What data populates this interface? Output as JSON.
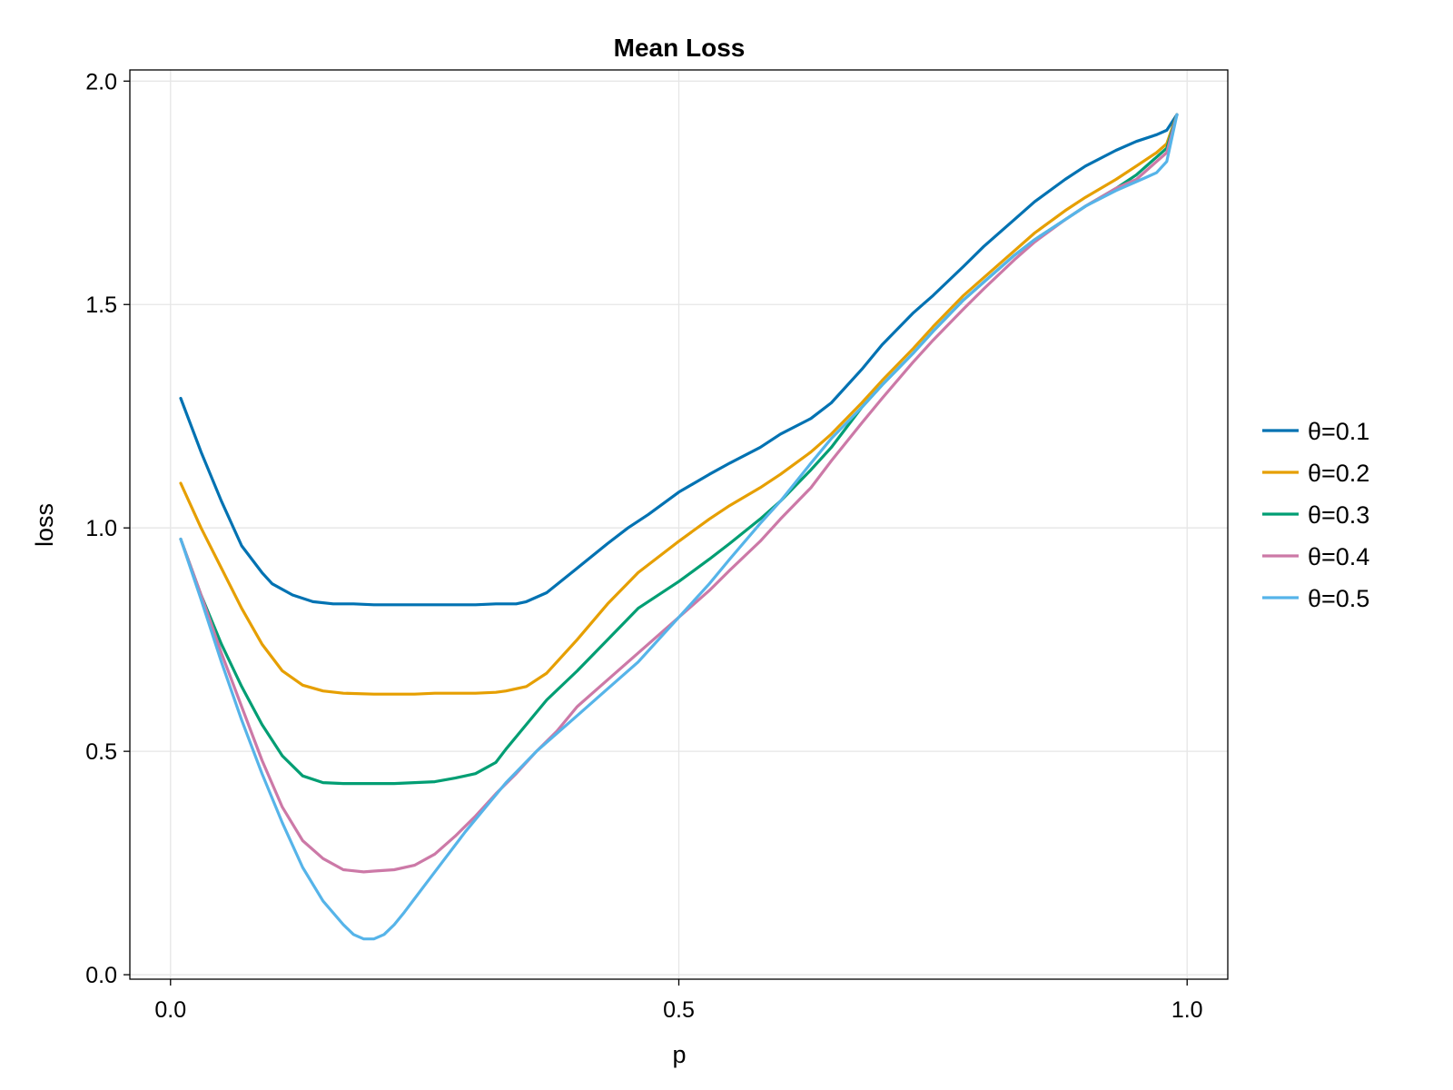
{
  "chart_data": {
    "type": "line",
    "title": "Mean Loss",
    "xlabel": "p",
    "ylabel": "loss",
    "xlim": [
      -0.04,
      1.04
    ],
    "ylim": [
      -0.01,
      2.025
    ],
    "xticks": [
      0.0,
      0.5,
      1.0
    ],
    "xtick_labels": [
      "0.0",
      "0.5",
      "1.0"
    ],
    "yticks": [
      0.0,
      0.5,
      1.0,
      1.5,
      2.0
    ],
    "ytick_labels": [
      "0.0",
      "0.5",
      "1.0",
      "1.5",
      "2.0"
    ],
    "grid": true,
    "legend_position": "right",
    "colors": [
      "#0072b2",
      "#e69f00",
      "#009e73",
      "#cc79a7",
      "#56b4e9"
    ],
    "series": [
      {
        "name": "θ=0.1",
        "x": [
          0.01,
          0.03,
          0.05,
          0.07,
          0.09,
          0.1,
          0.12,
          0.14,
          0.16,
          0.18,
          0.2,
          0.22,
          0.24,
          0.26,
          0.28,
          0.3,
          0.32,
          0.34,
          0.35,
          0.37,
          0.4,
          0.43,
          0.45,
          0.47,
          0.5,
          0.53,
          0.55,
          0.58,
          0.6,
          0.63,
          0.65,
          0.68,
          0.7,
          0.73,
          0.75,
          0.78,
          0.8,
          0.83,
          0.85,
          0.88,
          0.9,
          0.93,
          0.95,
          0.97,
          0.98,
          0.99
        ],
        "y": [
          1.29,
          1.17,
          1.06,
          0.96,
          0.9,
          0.875,
          0.85,
          0.835,
          0.83,
          0.83,
          0.828,
          0.828,
          0.828,
          0.828,
          0.828,
          0.828,
          0.83,
          0.83,
          0.835,
          0.855,
          0.91,
          0.965,
          1.0,
          1.03,
          1.08,
          1.12,
          1.145,
          1.18,
          1.21,
          1.245,
          1.28,
          1.355,
          1.41,
          1.48,
          1.52,
          1.585,
          1.63,
          1.69,
          1.73,
          1.78,
          1.81,
          1.845,
          1.865,
          1.88,
          1.89,
          1.925
        ]
      },
      {
        "name": "θ=0.2",
        "x": [
          0.01,
          0.03,
          0.05,
          0.07,
          0.09,
          0.11,
          0.13,
          0.15,
          0.17,
          0.2,
          0.22,
          0.24,
          0.26,
          0.28,
          0.3,
          0.32,
          0.33,
          0.35,
          0.37,
          0.4,
          0.43,
          0.46,
          0.5,
          0.53,
          0.55,
          0.58,
          0.6,
          0.63,
          0.65,
          0.68,
          0.7,
          0.73,
          0.75,
          0.78,
          0.8,
          0.83,
          0.85,
          0.88,
          0.9,
          0.93,
          0.95,
          0.97,
          0.98,
          0.99
        ],
        "y": [
          1.1,
          1.0,
          0.91,
          0.82,
          0.74,
          0.68,
          0.648,
          0.635,
          0.63,
          0.628,
          0.628,
          0.628,
          0.63,
          0.63,
          0.63,
          0.632,
          0.635,
          0.645,
          0.675,
          0.75,
          0.83,
          0.9,
          0.97,
          1.02,
          1.05,
          1.09,
          1.12,
          1.17,
          1.21,
          1.28,
          1.33,
          1.4,
          1.45,
          1.52,
          1.56,
          1.62,
          1.66,
          1.71,
          1.74,
          1.78,
          1.81,
          1.84,
          1.86,
          1.925
        ]
      },
      {
        "name": "θ=0.3",
        "x": [
          0.01,
          0.03,
          0.05,
          0.07,
          0.09,
          0.11,
          0.13,
          0.15,
          0.17,
          0.2,
          0.22,
          0.24,
          0.26,
          0.28,
          0.3,
          0.32,
          0.33,
          0.35,
          0.37,
          0.4,
          0.43,
          0.46,
          0.5,
          0.53,
          0.55,
          0.58,
          0.6,
          0.63,
          0.65,
          0.68,
          0.7,
          0.73,
          0.75,
          0.78,
          0.8,
          0.83,
          0.85,
          0.88,
          0.9,
          0.93,
          0.95,
          0.97,
          0.98,
          0.99
        ],
        "y": [
          0.975,
          0.85,
          0.74,
          0.645,
          0.56,
          0.49,
          0.445,
          0.43,
          0.428,
          0.428,
          0.428,
          0.43,
          0.432,
          0.44,
          0.45,
          0.475,
          0.505,
          0.56,
          0.615,
          0.68,
          0.75,
          0.82,
          0.88,
          0.93,
          0.965,
          1.02,
          1.06,
          1.13,
          1.18,
          1.27,
          1.32,
          1.39,
          1.44,
          1.51,
          1.55,
          1.61,
          1.645,
          1.69,
          1.72,
          1.76,
          1.79,
          1.83,
          1.85,
          1.925
        ]
      },
      {
        "name": "θ=0.4",
        "x": [
          0.01,
          0.03,
          0.05,
          0.07,
          0.09,
          0.11,
          0.13,
          0.15,
          0.17,
          0.19,
          0.2,
          0.22,
          0.24,
          0.26,
          0.28,
          0.3,
          0.32,
          0.34,
          0.36,
          0.38,
          0.4,
          0.43,
          0.46,
          0.5,
          0.53,
          0.55,
          0.58,
          0.6,
          0.63,
          0.65,
          0.68,
          0.7,
          0.73,
          0.75,
          0.78,
          0.8,
          0.83,
          0.85,
          0.88,
          0.9,
          0.93,
          0.95,
          0.97,
          0.98,
          0.99
        ],
        "y": [
          0.975,
          0.85,
          0.72,
          0.6,
          0.48,
          0.375,
          0.3,
          0.26,
          0.235,
          0.23,
          0.232,
          0.235,
          0.245,
          0.27,
          0.31,
          0.355,
          0.405,
          0.45,
          0.5,
          0.545,
          0.6,
          0.66,
          0.72,
          0.8,
          0.86,
          0.905,
          0.97,
          1.02,
          1.09,
          1.15,
          1.235,
          1.29,
          1.37,
          1.42,
          1.49,
          1.535,
          1.6,
          1.64,
          1.69,
          1.72,
          1.76,
          1.78,
          1.82,
          1.84,
          1.925
        ]
      },
      {
        "name": "θ=0.5",
        "x": [
          0.01,
          0.03,
          0.05,
          0.07,
          0.09,
          0.11,
          0.13,
          0.15,
          0.17,
          0.18,
          0.19,
          0.2,
          0.21,
          0.22,
          0.23,
          0.24,
          0.25,
          0.27,
          0.29,
          0.31,
          0.33,
          0.36,
          0.4,
          0.43,
          0.46,
          0.5,
          0.53,
          0.55,
          0.58,
          0.6,
          0.63,
          0.65,
          0.68,
          0.7,
          0.73,
          0.75,
          0.78,
          0.8,
          0.83,
          0.85,
          0.88,
          0.9,
          0.93,
          0.95,
          0.96,
          0.97,
          0.98,
          0.99
        ],
        "y": [
          0.975,
          0.84,
          0.7,
          0.57,
          0.45,
          0.34,
          0.24,
          0.165,
          0.112,
          0.09,
          0.08,
          0.08,
          0.09,
          0.112,
          0.14,
          0.17,
          0.2,
          0.26,
          0.32,
          0.375,
          0.43,
          0.5,
          0.58,
          0.64,
          0.7,
          0.8,
          0.875,
          0.93,
          1.01,
          1.06,
          1.145,
          1.2,
          1.27,
          1.32,
          1.39,
          1.44,
          1.51,
          1.55,
          1.61,
          1.645,
          1.69,
          1.72,
          1.755,
          1.775,
          1.785,
          1.795,
          1.82,
          1.925
        ]
      }
    ]
  }
}
